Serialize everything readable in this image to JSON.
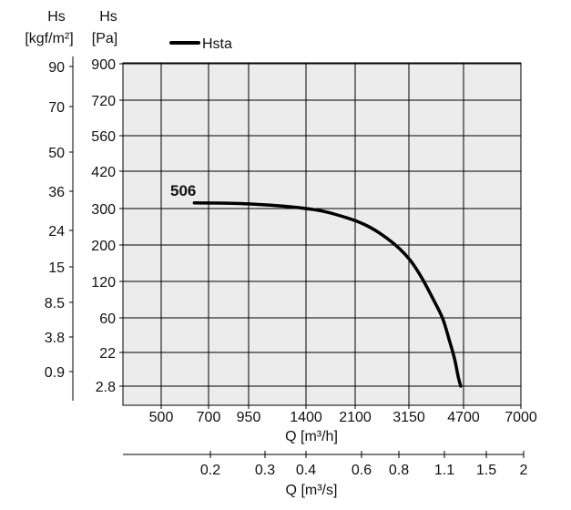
{
  "chart_data": {
    "type": "line",
    "title": "",
    "legend": {
      "entries": [
        "Hsta"
      ],
      "placement": "top-left"
    },
    "grid": true,
    "plot_background": "#ececec",
    "curve_color": "#000000",
    "y_axis_pa": {
      "label": "Hs",
      "unit": "[Pa]",
      "ticks": [
        "2.8",
        "22",
        "60",
        "120",
        "200",
        "300",
        "420",
        "560",
        "720",
        "900"
      ]
    },
    "y_axis_kgf": {
      "label": "Hs",
      "unit": "[kgf/m²]",
      "ticks": [
        "0.9",
        "3.8",
        "8.5",
        "15",
        "24",
        "36",
        "50",
        "70",
        "90"
      ]
    },
    "x_axis_m3h": {
      "label": "Q [m³/h]",
      "ticks": [
        "500",
        "700",
        "950",
        "1400",
        "2100",
        "3150",
        "4700",
        "7000"
      ]
    },
    "x_axis_m3s": {
      "label": "Q [m³/s]",
      "ticks": [
        "0.2",
        "0.3",
        "0.4",
        "0.6",
        "0.8",
        "1.1",
        "1.5",
        "2"
      ]
    },
    "series": [
      {
        "name": "Hsta",
        "curve_label": "506",
        "points_q_m3h": [
          640,
          950,
          1400,
          1800,
          2300,
          2800,
          3150,
          3500,
          3800,
          4100,
          4300,
          4450,
          4550,
          4620
        ],
        "points_hs_pa": [
          318,
          315,
          300,
          285,
          255,
          210,
          170,
          130,
          95,
          60,
          35,
          18,
          8,
          2.8
        ]
      }
    ]
  }
}
